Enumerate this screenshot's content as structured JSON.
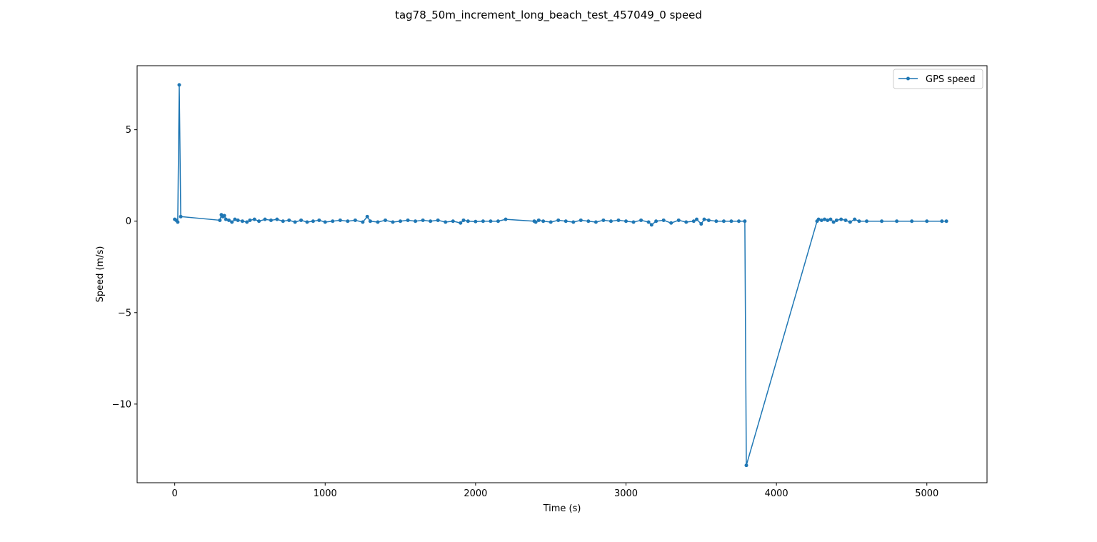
{
  "chart_data": {
    "type": "line",
    "title": "tag78_50m_increment_long_beach_test_457049_0 speed",
    "xlabel": "Time (s)",
    "ylabel": "Speed (m/s)",
    "xlim": [
      -250,
      5400
    ],
    "ylim": [
      -14.3,
      8.5
    ],
    "xticks": [
      0,
      1000,
      2000,
      3000,
      4000,
      5000
    ],
    "xtick_labels": [
      "0",
      "1000",
      "2000",
      "3000",
      "4000",
      "5000"
    ],
    "yticks": [
      5,
      0,
      -5,
      -10
    ],
    "ytick_labels": [
      "5",
      "0",
      "−5",
      "−10"
    ],
    "grid": false,
    "legend_position": "top-right",
    "color": "#1f77b4",
    "series": [
      {
        "name": "GPS speed",
        "marker": "dot",
        "x": [
          0,
          10,
          20,
          30,
          40,
          300,
          310,
          320,
          330,
          340,
          360,
          380,
          400,
          420,
          450,
          480,
          500,
          530,
          560,
          600,
          640,
          680,
          720,
          760,
          800,
          840,
          880,
          920,
          960,
          1000,
          1050,
          1100,
          1150,
          1200,
          1250,
          1280,
          1300,
          1350,
          1400,
          1450,
          1500,
          1550,
          1600,
          1650,
          1700,
          1750,
          1800,
          1850,
          1900,
          1920,
          1950,
          2000,
          2050,
          2100,
          2150,
          2200,
          2390,
          2400,
          2420,
          2450,
          2500,
          2550,
          2600,
          2650,
          2700,
          2750,
          2800,
          2850,
          2900,
          2950,
          3000,
          3050,
          3100,
          3150,
          3170,
          3200,
          3250,
          3300,
          3350,
          3400,
          3450,
          3470,
          3500,
          3520,
          3550,
          3600,
          3650,
          3700,
          3750,
          3790,
          3800,
          4270,
          4280,
          4300,
          4320,
          4340,
          4360,
          4380,
          4400,
          4430,
          4460,
          4490,
          4520,
          4550,
          4600,
          4700,
          4800,
          4900,
          5000,
          5100,
          5130
        ],
        "y": [
          0.1,
          0.05,
          -0.05,
          7.45,
          0.25,
          0.05,
          0.35,
          0.25,
          0.3,
          0.1,
          0.05,
          -0.05,
          0.1,
          0.05,
          0.0,
          -0.05,
          0.05,
          0.1,
          0.0,
          0.1,
          0.05,
          0.1,
          0.0,
          0.05,
          -0.05,
          0.05,
          -0.05,
          0.0,
          0.05,
          -0.05,
          0.0,
          0.05,
          0.0,
          0.05,
          -0.05,
          0.25,
          0.0,
          -0.05,
          0.05,
          -0.05,
          0.0,
          0.05,
          0.0,
          0.05,
          0.0,
          0.05,
          -0.05,
          0.0,
          -0.1,
          0.05,
          0.0,
          -0.02,
          0.0,
          0.0,
          0.0,
          0.1,
          0.0,
          -0.05,
          0.05,
          0.0,
          -0.05,
          0.05,
          0.0,
          -0.05,
          0.05,
          0.0,
          -0.05,
          0.05,
          0.0,
          0.05,
          0.0,
          -0.05,
          0.05,
          -0.05,
          -0.2,
          0.0,
          0.05,
          -0.1,
          0.05,
          -0.05,
          0.0,
          0.1,
          -0.15,
          0.1,
          0.05,
          0.0,
          0.0,
          0.0,
          0.0,
          0.0,
          -13.35,
          0.0,
          0.1,
          0.05,
          0.1,
          0.05,
          0.1,
          -0.05,
          0.05,
          0.1,
          0.05,
          -0.05,
          0.1,
          0.0,
          0.0,
          0.0,
          0.0,
          0.0,
          0.0,
          0.0,
          0.0
        ]
      }
    ]
  }
}
